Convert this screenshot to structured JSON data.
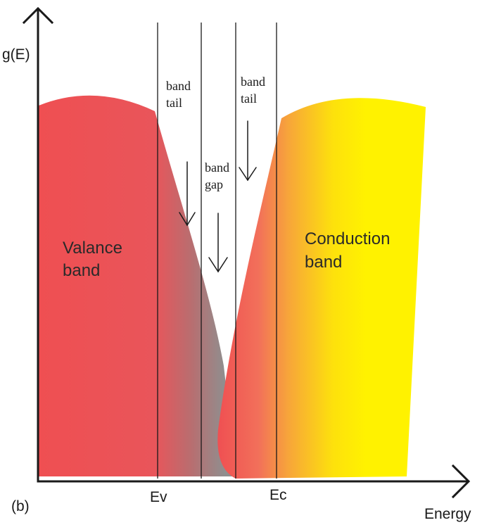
{
  "axes": {
    "y_label": "g(E)",
    "x_label": "Energy"
  },
  "panel_label": "(b)",
  "markers": {
    "ev": "Ev",
    "ec": "Ec"
  },
  "regions": {
    "valence_line1": "Valance",
    "valence_line2": "band",
    "conduction_line1": "Conduction",
    "conduction_line2": "band",
    "tail_left_line1": "band",
    "tail_left_line2": "tail",
    "gap_line1": "band",
    "gap_line2": "gap",
    "tail_right_line1": "band",
    "tail_right_line2": "tail"
  },
  "colors": {
    "valence": "#ef4f52",
    "valence_tail": "#8f8f8f",
    "conduction_start": "#ef4f52",
    "conduction_mid": "#f7a53a",
    "conduction": "#fff200",
    "axis": "#1a1a1a"
  }
}
